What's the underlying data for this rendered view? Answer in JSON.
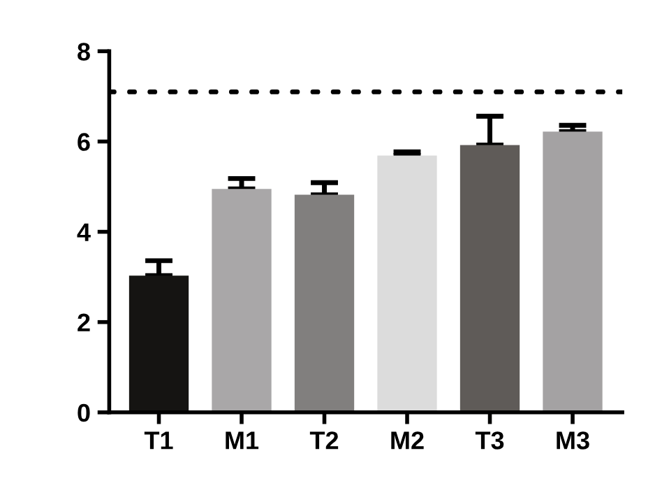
{
  "chart_data": {
    "type": "bar",
    "categories": [
      "T1",
      "M1",
      "T2",
      "M2",
      "T3",
      "M3"
    ],
    "values": [
      3.03,
      4.95,
      4.82,
      5.69,
      5.92,
      6.22
    ],
    "colors": [
      "#151412",
      "#a9a7a8",
      "#817f7e",
      "#dcdcdc",
      "#5f5b58",
      "#a4a2a3"
    ],
    "errors": [
      [
        3.03,
        3.36
      ],
      [
        4.95,
        5.18
      ],
      [
        4.82,
        5.09
      ],
      [
        5.69,
        5.77
      ],
      [
        5.92,
        6.56
      ],
      [
        6.22,
        6.36
      ]
    ],
    "ylim": [
      0,
      8
    ],
    "yticks": [
      0,
      2,
      4,
      6,
      8
    ],
    "grid": false,
    "legend": false,
    "ref_lines": [
      {
        "axis": "y",
        "value": 7.1,
        "line_style": "dotted",
        "color": "#000000"
      }
    ]
  }
}
